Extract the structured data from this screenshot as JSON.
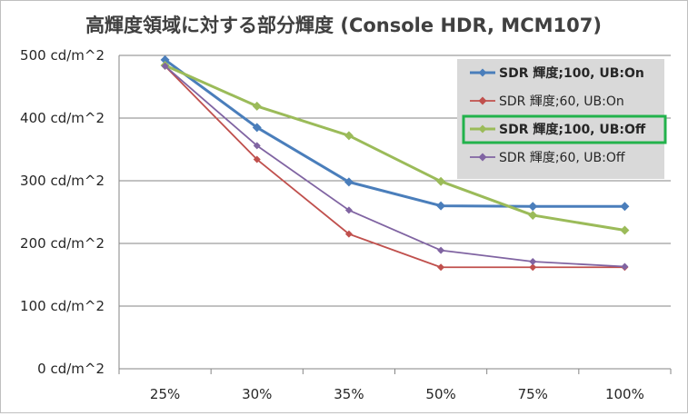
{
  "chart_data": {
    "type": "line",
    "title": "高輝度領域に対する部分輝度 (Console HDR, MCM107)",
    "categories": [
      "25%",
      "30%",
      "35%",
      "50%",
      "75%",
      "100%"
    ],
    "y_ticks": [
      "0 cd/m^2",
      "100 cd/m^2",
      "200 cd/m^2",
      "300 cd/m^2",
      "400 cd/m^2",
      "500 cd/m^2"
    ],
    "ylim": [
      0,
      500
    ],
    "grid": "horizontal",
    "legend_position": "top-right",
    "series": [
      {
        "name": "SDR 輝度;100, UB:On",
        "values": [
          493,
          385,
          298,
          260,
          259,
          259
        ],
        "color": "#4a7ebb",
        "bold": true,
        "highlight": false
      },
      {
        "name": "SDR 輝度;60, UB:On",
        "values": [
          483,
          334,
          215,
          162,
          162,
          162
        ],
        "color": "#c0504d",
        "bold": false,
        "highlight": false
      },
      {
        "name": "SDR 輝度;100, UB:Off",
        "values": [
          484,
          419,
          372,
          299,
          245,
          221
        ],
        "color": "#9bbb59",
        "bold": true,
        "highlight": true
      },
      {
        "name": "SDR 輝度;60, UB:Off",
        "values": [
          483,
          356,
          253,
          189,
          171,
          163
        ],
        "color": "#8064a2",
        "bold": false,
        "highlight": false
      }
    ],
    "legend_background": "#d9d9d9",
    "highlight_color": "#22b24c"
  }
}
